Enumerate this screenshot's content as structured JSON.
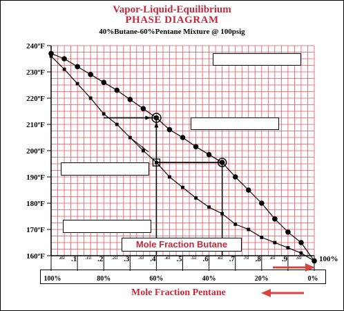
{
  "title_line1": "Vapor-Liquid-Equilibrium",
  "title_line2": "PHASE DIAGRAM",
  "subtitle": "40%Butane-60%Pentane Mixture @ 100psig",
  "label_butane": "Mole Fraction Butane",
  "label_pentane": "Mole Fraction Pentane",
  "colors": {
    "title": "#c8283c",
    "grid": "#e8505a",
    "arrow": "#d9423f",
    "ink": "#000000"
  },
  "chart_data": {
    "type": "line",
    "xlabel": "Mole Fraction Butane",
    "ylabel": "",
    "xlim": [
      0,
      1
    ],
    "ylim": [
      160,
      240
    ],
    "y_ticks": [
      {
        "v": 160,
        "t": "160ºF"
      },
      {
        "v": 170,
        "t": "170ºF"
      },
      {
        "v": 180,
        "t": "180ºF"
      },
      {
        "v": 190,
        "t": "190ºF"
      },
      {
        "v": 200,
        "t": "200ºF"
      },
      {
        "v": 210,
        "t": "210ºF"
      },
      {
        "v": 220,
        "t": "220ºF"
      },
      {
        "v": 230,
        "t": "230ºF"
      },
      {
        "v": 240,
        "t": "240ºF"
      }
    ],
    "x_major_ticks": [
      {
        "v": 0.1,
        "t": ".1"
      },
      {
        "v": 0.2,
        "t": ".2"
      },
      {
        "v": 0.3,
        "t": ".3"
      },
      {
        "v": 0.4,
        "t": ".4"
      },
      {
        "v": 0.5,
        "t": ".5"
      },
      {
        "v": 0.6,
        "t": ".6"
      },
      {
        "v": 0.7,
        "t": ".7"
      },
      {
        "v": 0.8,
        "t": ".8"
      },
      {
        "v": 0.9,
        "t": ".9"
      },
      {
        "v": 1.0,
        "t": "100%"
      }
    ],
    "x_minor_ticks": [
      {
        "v": 0.05,
        "t": ".05"
      },
      {
        "v": 0.15,
        "t": ".15"
      },
      {
        "v": 0.25,
        "t": ".25"
      },
      {
        "v": 0.35,
        "t": ".35"
      },
      {
        "v": 0.45,
        "t": ".45"
      },
      {
        "v": 0.55,
        "t": ".55"
      },
      {
        "v": 0.65,
        "t": ".65"
      },
      {
        "v": 0.75,
        "t": ".75"
      },
      {
        "v": 0.85,
        "t": ".85"
      },
      {
        "v": 0.95,
        "t": ".95"
      }
    ],
    "pentane_ticks": [
      {
        "v": 0.0,
        "t": "100%"
      },
      {
        "v": 0.2,
        "t": "80%"
      },
      {
        "v": 0.4,
        "t": "60%"
      },
      {
        "v": 0.6,
        "t": "40%"
      },
      {
        "v": 0.8,
        "t": "20%"
      },
      {
        "v": 1.0,
        "t": "0%"
      }
    ],
    "series": [
      {
        "marker": "circle",
        "x": [
          0.0,
          0.05,
          0.1,
          0.15,
          0.2,
          0.25,
          0.3,
          0.35,
          0.4,
          0.45,
          0.5,
          0.55,
          0.6,
          0.65,
          0.7,
          0.75,
          0.8,
          0.85,
          0.9,
          0.95,
          1.0
        ],
        "y": [
          237,
          235,
          232,
          229,
          226,
          223,
          219.5,
          216,
          212.5,
          208,
          205,
          201.5,
          198.5,
          195.5,
          190,
          185,
          180,
          174,
          169,
          165,
          158
        ]
      },
      {
        "marker": "square",
        "x": [
          0.0,
          0.05,
          0.1,
          0.15,
          0.2,
          0.25,
          0.3,
          0.35,
          0.4,
          0.45,
          0.5,
          0.55,
          0.6,
          0.65,
          0.7,
          0.75,
          0.8,
          0.85,
          0.9,
          0.95,
          1.0
        ],
        "y": [
          236,
          231,
          225.5,
          220,
          214,
          210,
          205,
          200,
          195.5,
          190,
          186,
          182,
          178.5,
          176,
          172,
          170,
          167,
          165,
          163,
          161,
          158
        ]
      }
    ],
    "construction": {
      "bubble_point": {
        "x": 0.4,
        "y": 195.5
      },
      "dew_point": {
        "x": 0.4,
        "y": 212.5
      },
      "vapor_composition": {
        "x": 0.65,
        "y": 195.5
      },
      "liquid_composition": {
        "x": 0.2,
        "y": 212.5
      }
    }
  }
}
